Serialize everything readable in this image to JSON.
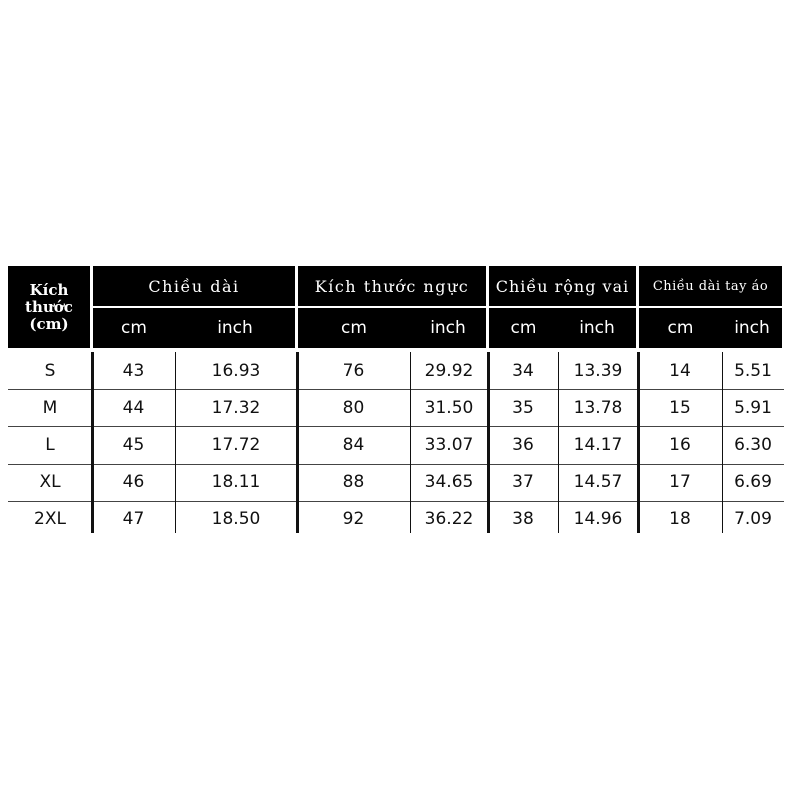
{
  "header": {
    "size_label": "Kích thước (cm)",
    "groups": [
      "Chiều dài",
      "Kích thước ngực",
      "Chiều rộng vai",
      "Chiều dài tay áo"
    ],
    "unit_cm": "cm",
    "unit_inch": "inch"
  },
  "rows": [
    {
      "size": "S",
      "values": [
        "43",
        "16.93",
        "76",
        "29.92",
        "34",
        "13.39",
        "14",
        "5.51"
      ]
    },
    {
      "size": "M",
      "values": [
        "44",
        "17.32",
        "80",
        "31.50",
        "35",
        "13.78",
        "15",
        "5.91"
      ]
    },
    {
      "size": "L",
      "values": [
        "45",
        "17.72",
        "84",
        "33.07",
        "36",
        "14.17",
        "16",
        "6.30"
      ]
    },
    {
      "size": "XL",
      "values": [
        "46",
        "18.11",
        "88",
        "34.65",
        "37",
        "14.57",
        "17",
        "6.69"
      ]
    },
    {
      "size": "2XL",
      "values": [
        "47",
        "18.50",
        "92",
        "36.22",
        "38",
        "14.96",
        "18",
        "7.09"
      ]
    }
  ]
}
